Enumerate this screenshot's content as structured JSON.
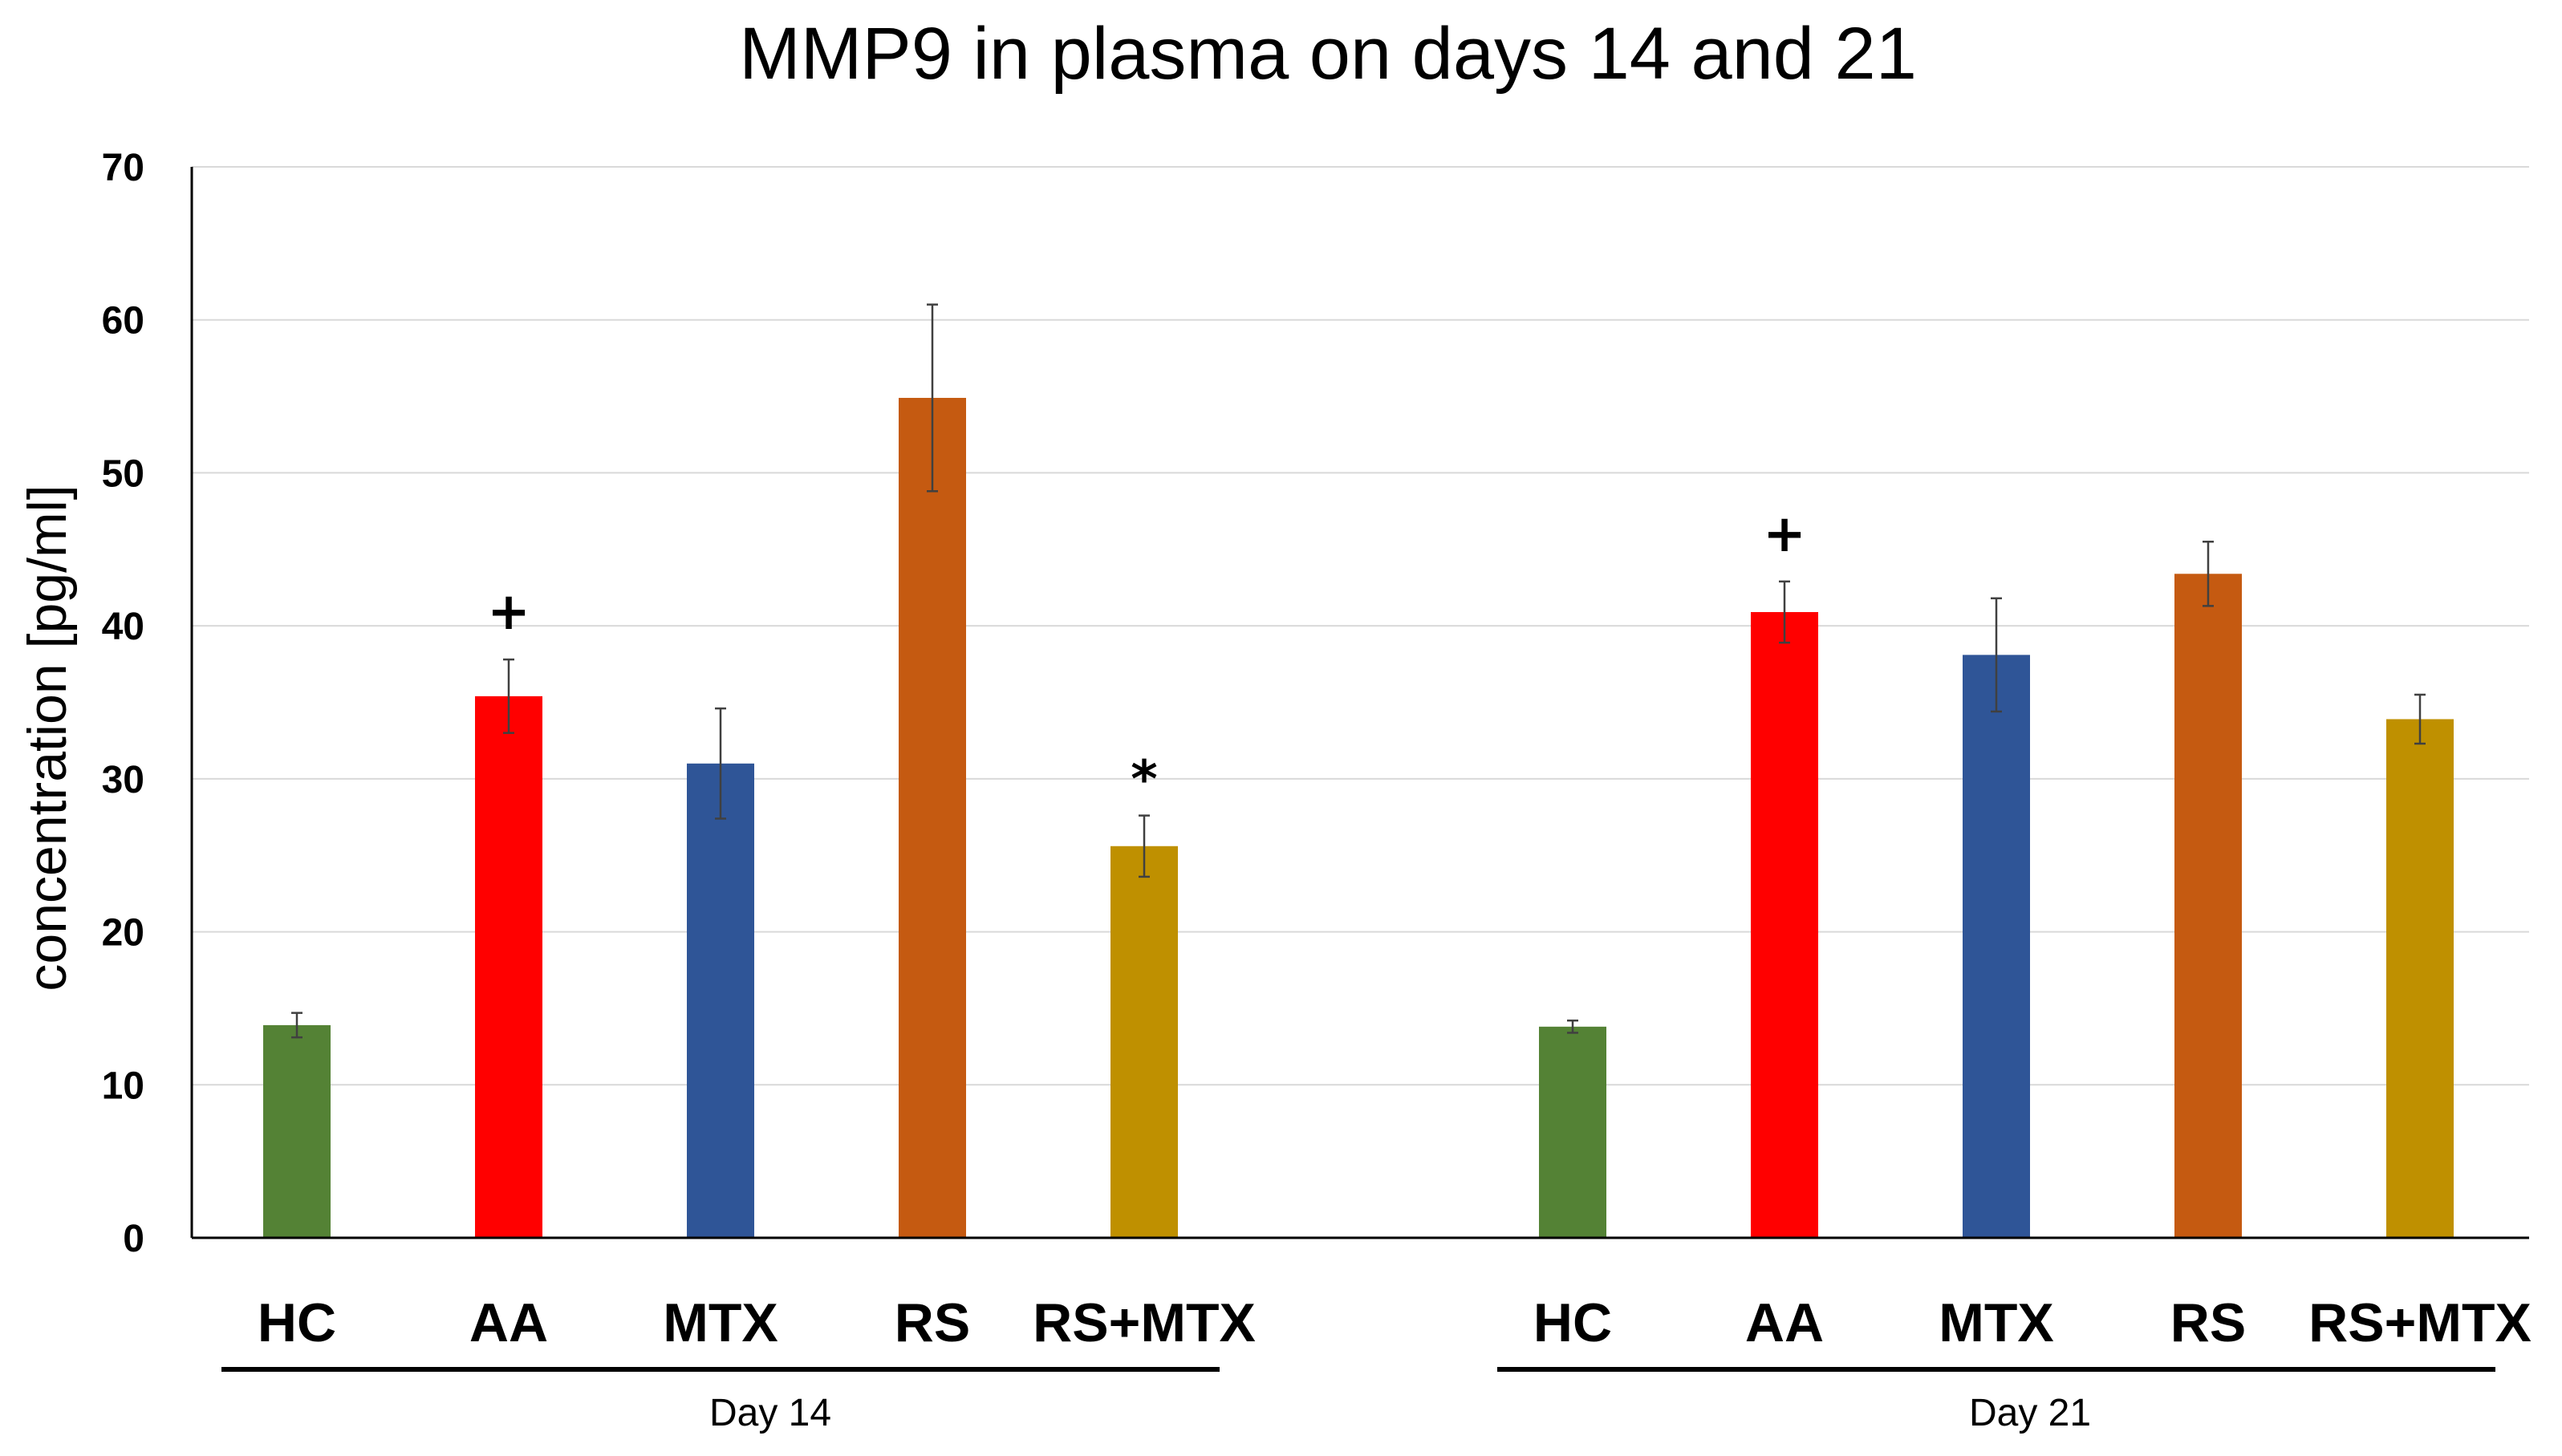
{
  "chart_data": {
    "type": "bar",
    "title": "MMP9 in plasma on days 14 and 21",
    "xlabel": "",
    "ylabel": "concentration [pg/ml]",
    "ylim": [
      0,
      70
    ],
    "yticks": [
      0,
      10,
      20,
      30,
      40,
      50,
      60,
      70
    ],
    "grid": true,
    "colors": {
      "HC": "#548235",
      "AA": "#ff0000",
      "MTX": "#2f5597",
      "RS": "#c55a11",
      "RS+MTX": "#bf9000"
    },
    "groups": [
      {
        "name": "Day 14",
        "bars": [
          {
            "category": "HC",
            "value": 13.9,
            "error": 0.8,
            "annotation": ""
          },
          {
            "category": "AA",
            "value": 35.4,
            "error": 2.4,
            "annotation": "+"
          },
          {
            "category": "MTX",
            "value": 31.0,
            "error": 3.6,
            "annotation": ""
          },
          {
            "category": "RS",
            "value": 54.9,
            "error": 6.1,
            "annotation": ""
          },
          {
            "category": "RS+MTX",
            "value": 25.6,
            "error": 2.0,
            "annotation": "*"
          }
        ]
      },
      {
        "name": "Day 21",
        "bars": [
          {
            "category": "HC",
            "value": 13.8,
            "error": 0.4,
            "annotation": ""
          },
          {
            "category": "AA",
            "value": 40.9,
            "error": 2.0,
            "annotation": "+"
          },
          {
            "category": "MTX",
            "value": 38.1,
            "error": 3.7,
            "annotation": ""
          },
          {
            "category": "RS",
            "value": 43.4,
            "error": 2.1,
            "annotation": ""
          },
          {
            "category": "RS+MTX",
            "value": 33.9,
            "error": 1.6,
            "annotation": ""
          }
        ]
      }
    ]
  }
}
